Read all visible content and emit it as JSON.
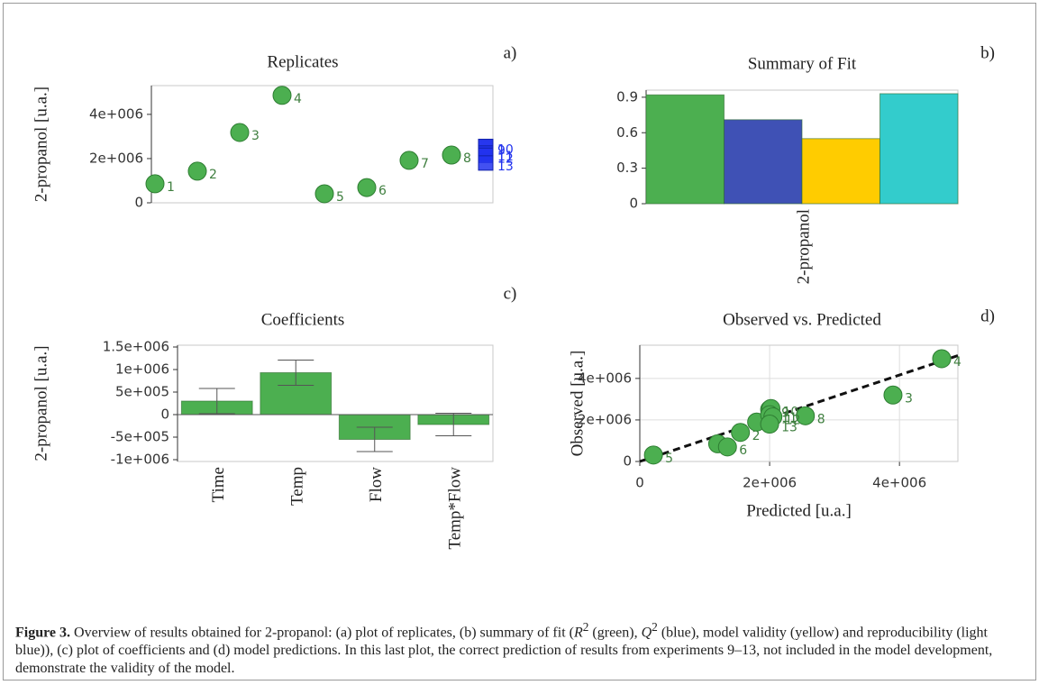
{
  "chart_data": [
    {
      "type": "scatter",
      "panel": "a)",
      "title": "Replicates",
      "ylabel": "2-propanol [u.a.]",
      "ylim": [
        0,
        5300000
      ],
      "yticks": [
        0,
        {
          "value": 2000000,
          "label": "2e+006"
        },
        {
          "value": 4000000,
          "label": "4e+006"
        }
      ],
      "series": [
        {
          "color": "#4caf50",
          "label_color": "#3f7f3f",
          "marker": "circle",
          "labels": [
            "1",
            "2",
            "3",
            "4",
            "5",
            "6",
            "7",
            "8"
          ],
          "values": [
            860000,
            1430000,
            3180000,
            4860000,
            410000,
            690000,
            1920000,
            2160000
          ]
        },
        {
          "color": "#2233ee",
          "label_color": "#2233ee",
          "marker": "square",
          "labels": [
            "9",
            "10",
            "11",
            "12",
            "13"
          ],
          "values": [
            2500000,
            2550000,
            2250000,
            2150000,
            1800000
          ]
        }
      ]
    },
    {
      "type": "bar",
      "panel": "b)",
      "title": "Summary of Fit",
      "categories": [
        "2-propanol"
      ],
      "ylim": [
        0,
        0.96
      ],
      "yticks": [
        0,
        0.3,
        0.6,
        0.9
      ],
      "series": [
        {
          "color": "#4caf50",
          "values": [
            0.92
          ]
        },
        {
          "color": "#3f51b5",
          "values": [
            0.71
          ]
        },
        {
          "color": "#ffcc00",
          "values": [
            0.55
          ]
        },
        {
          "color": "#33cccc",
          "values": [
            0.93
          ]
        }
      ]
    },
    {
      "type": "bar",
      "panel": "c)",
      "title": "Coefficients",
      "ylabel": "2-propanol [u.a.]",
      "categories": [
        "Time",
        "Temp",
        "Flow",
        "Temp*Flow"
      ],
      "ylim": [
        -1040000,
        1540000
      ],
      "yticks": [
        {
          "value": -1000000,
          "label": "-1e+006"
        },
        {
          "value": -500000,
          "label": "-5e+005"
        },
        0,
        {
          "value": 500000,
          "label": "5e+005"
        },
        {
          "value": 1000000,
          "label": "1e+006"
        },
        {
          "value": 1500000,
          "label": "1.5e+006"
        }
      ],
      "series": [
        {
          "color": "#4caf50",
          "values": [
            300000,
            930000,
            -550000,
            -220000
          ],
          "errors": [
            280000,
            280000,
            270000,
            250000
          ]
        }
      ]
    },
    {
      "type": "scatter",
      "panel": "d)",
      "title": "Observed vs. Predicted",
      "xlabel": "Predicted [u.a.]",
      "ylabel": "Observed [u.a.]",
      "xlim": [
        0,
        4900000
      ],
      "ylim": [
        0,
        5600000
      ],
      "xticks": [
        0,
        {
          "value": 2000000,
          "label": "2e+006"
        },
        {
          "value": 4000000,
          "label": "4e+006"
        }
      ],
      "yticks": [
        0,
        {
          "value": 2000000,
          "label": "2e+006"
        },
        {
          "value": 4000000,
          "label": "4e+006"
        }
      ],
      "grid": true,
      "series": [
        {
          "color": "#4caf50",
          "label_color": "#3f7f3f",
          "marker": "circle",
          "labels": [
            "1",
            "2",
            "3",
            "4",
            "5",
            "6",
            "7",
            "8",
            "9",
            "10",
            "11",
            "12",
            "13"
          ],
          "x": [
            1200000,
            1550000,
            3900000,
            4650000,
            210000,
            1350000,
            1800000,
            2550000,
            2000000,
            2020000,
            2000000,
            2050000,
            2000000
          ],
          "values": [
            850000,
            1400000,
            3200000,
            4950000,
            310000,
            700000,
            1900000,
            2200000,
            2500000,
            2550000,
            2250000,
            2150000,
            1800000
          ]
        }
      ],
      "fit_line": {
        "color": "#111111",
        "x": [
          0,
          4900000
        ],
        "values": [
          0,
          5100000
        ]
      }
    }
  ],
  "caption": {
    "label": "Figure 3.",
    "parts": [
      " Overview of results obtained for 2-propanol: (a) plot of replicates, (b) summary of fit (",
      "R",
      "2",
      " (green), ",
      "Q",
      "2",
      " (blue), model validity (yellow) and reproducibility (light blue)), (c) plot of coefficients and (d) model predictions. In this last plot, the correct prediction of results from experiments 9–13, not included in the model development, demonstrate the validity of the model."
    ]
  }
}
